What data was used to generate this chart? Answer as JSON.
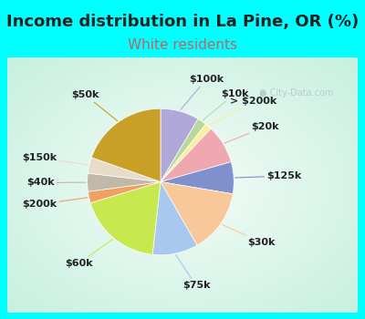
{
  "title": "Income distribution in La Pine, OR (%)",
  "subtitle": "White residents",
  "title_fontsize": 13,
  "subtitle_fontsize": 11,
  "title_color": "#222222",
  "subtitle_color": "#bb6666",
  "background_color": "#00ffff",
  "watermark": "City-Data.com",
  "slices": [
    {
      "label": "$100k",
      "value": 8.5,
      "color": "#b0a8d8"
    },
    {
      "label": "$10k",
      "value": 2.0,
      "color": "#b8d8a0"
    },
    {
      "label": "> $200k",
      "value": 1.5,
      "color": "#f8f0a0"
    },
    {
      "label": "$20k",
      "value": 8.5,
      "color": "#f0a8b0"
    },
    {
      "label": "$125k",
      "value": 7.0,
      "color": "#8090cc"
    },
    {
      "label": "$30k",
      "value": 14.0,
      "color": "#f8c89a"
    },
    {
      "label": "$75k",
      "value": 10.0,
      "color": "#a8c8f0"
    },
    {
      "label": "$60k",
      "value": 18.5,
      "color": "#c8e850"
    },
    {
      "label": "$200k",
      "value": 2.5,
      "color": "#f0a060"
    },
    {
      "label": "$40k",
      "value": 4.0,
      "color": "#c0b8a8"
    },
    {
      "label": "$150k",
      "value": 3.5,
      "color": "#e8dcc8"
    },
    {
      "label": "$50k",
      "value": 19.5,
      "color": "#c8a028"
    }
  ],
  "label_fontsize": 8,
  "label_color": "#222222"
}
